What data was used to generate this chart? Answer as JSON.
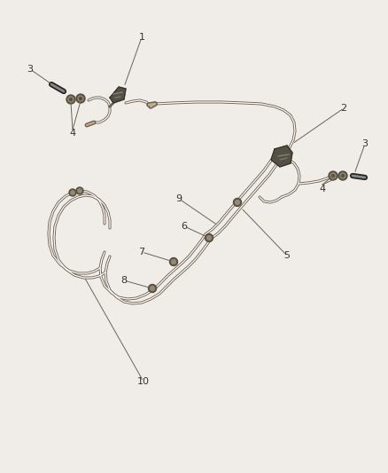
{
  "bg_color": "#f0ede8",
  "line_color": "#a09080",
  "line_color_dark": "#706050",
  "label_color": "#333333",
  "label_fontsize": 8,
  "figsize": [
    4.38,
    5.33
  ],
  "dpi": 100,
  "xlim": [
    0,
    438
  ],
  "ylim": [
    533,
    0
  ]
}
